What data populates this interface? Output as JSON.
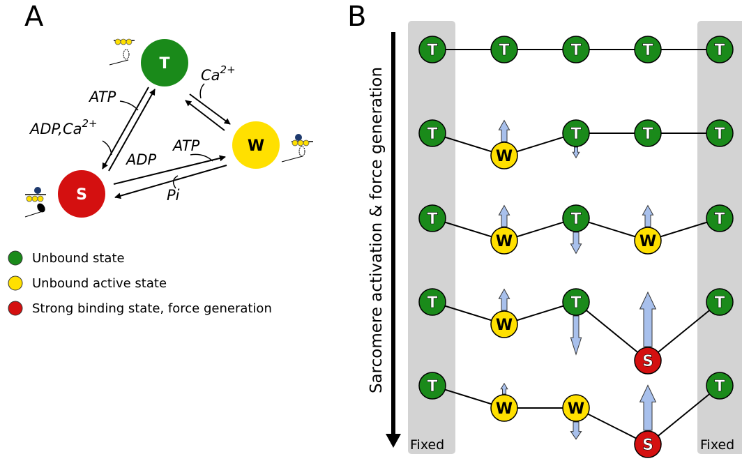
{
  "panel_a": {
    "label": "A",
    "states": {
      "t": {
        "letter": "T",
        "color": "#1a8a1a"
      },
      "w": {
        "letter": "W",
        "color": "#ffe000"
      },
      "s": {
        "letter": "S",
        "color": "#d41010"
      }
    },
    "transitions": {
      "atp_top": "ATP",
      "adp_ca": "ADP,Ca",
      "adp_ca_sup": "2+",
      "ca": "Ca",
      "ca_sup": "2+",
      "adp": "ADP",
      "atp_mid": "ATP",
      "pi": "Pi"
    },
    "legend": [
      {
        "label": "Unbound state",
        "color": "#1a8a1a"
      },
      {
        "label": "Unbound active state",
        "color": "#ffe000"
      },
      {
        "label": "Strong binding state, force generation",
        "color": "#d41010"
      }
    ]
  },
  "panel_b": {
    "label": "B",
    "axis_label": "Sarcomere activation & force generation",
    "fixed_label": "Fixed",
    "rows": [
      [
        "T",
        "T",
        "T",
        "T",
        "T"
      ],
      [
        "T",
        "W",
        "T",
        "T",
        "T"
      ],
      [
        "T",
        "W",
        "T",
        "W",
        "T"
      ],
      [
        "T",
        "W",
        "T",
        "S",
        "T"
      ],
      [
        "T",
        "W",
        "W",
        "S",
        "T"
      ]
    ],
    "colors": {
      "T": "#1a8a1a",
      "W": "#ffe000",
      "S": "#d41010",
      "arrow": "#a8c0ec",
      "fixed_band": "#d3d3d3"
    }
  }
}
